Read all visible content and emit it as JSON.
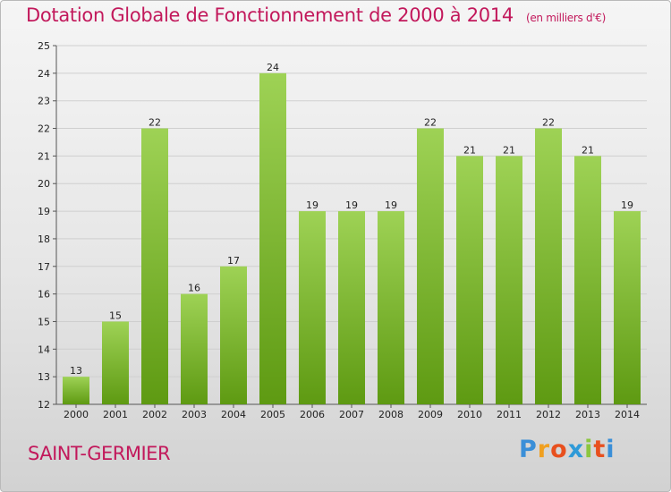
{
  "header": {
    "title": "Dotation Globale de Fonctionnement de 2000 à 2014",
    "unit": "(en milliers d'€)"
  },
  "commune": "SAINT-GERMIER",
  "logo": {
    "letters": [
      "P",
      "r",
      "o",
      "x",
      "i",
      "t",
      "i"
    ],
    "colors": [
      "#3a8fd8",
      "#f0a020",
      "#e8501e",
      "#2e9ad8",
      "#8cc63f",
      "#e8501e",
      "#3a8fd8"
    ]
  },
  "colors": {
    "bar_top": "#9ed255",
    "bar_bottom": "#5e9a12",
    "grid": "#cfcfcf",
    "text": "#222222"
  },
  "chart_data": {
    "type": "bar",
    "title": "Dotation Globale de Fonctionnement de 2000 à 2014",
    "ylabel": "",
    "xlabel": "",
    "categories": [
      "2000",
      "2001",
      "2002",
      "2003",
      "2004",
      "2005",
      "2006",
      "2007",
      "2008",
      "2009",
      "2010",
      "2011",
      "2012",
      "2013",
      "2014"
    ],
    "values": [
      13,
      15,
      22,
      16,
      17,
      24,
      19,
      19,
      19,
      22,
      21,
      21,
      22,
      21,
      19
    ],
    "ylim": [
      12,
      25
    ],
    "yticks": [
      12,
      13,
      14,
      15,
      16,
      17,
      18,
      19,
      20,
      21,
      22,
      23,
      24,
      25
    ],
    "grid": true
  }
}
